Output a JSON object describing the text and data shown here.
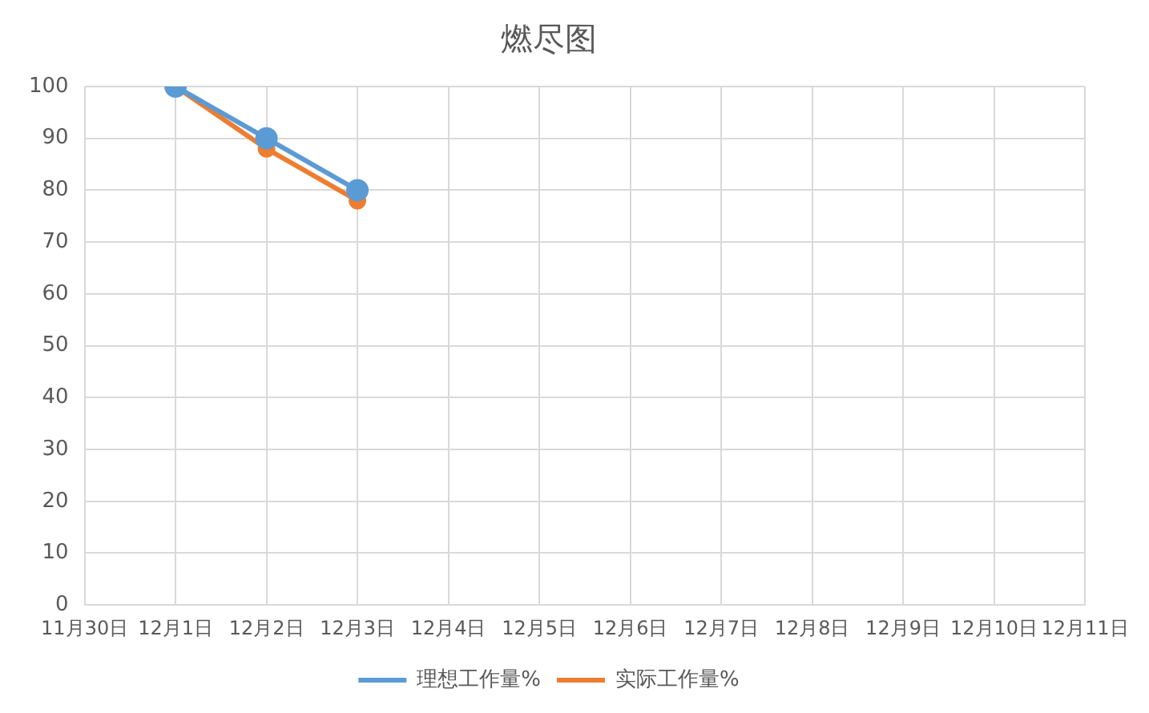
{
  "chart_data": {
    "type": "line",
    "title": "燃尽图",
    "categories": [
      "11月30日",
      "12月1日",
      "12月2日",
      "12月3日",
      "12月4日",
      "12月5日",
      "12月6日",
      "12月7日",
      "12月8日",
      "12月9日",
      "12月10日",
      "12月11日"
    ],
    "series": [
      {
        "name": "理想工作量%",
        "color": "#5b9bd5",
        "values": [
          null,
          100,
          90,
          80,
          null,
          null,
          null,
          null,
          null,
          null,
          null,
          null
        ]
      },
      {
        "name": "实际工作量%",
        "color": "#ed7d31",
        "values": [
          null,
          100,
          88,
          78,
          null,
          null,
          null,
          null,
          null,
          null,
          null,
          null
        ]
      }
    ],
    "ylim": [
      0,
      100
    ],
    "yticks": [
      0,
      10,
      20,
      30,
      40,
      50,
      60,
      70,
      80,
      90,
      100
    ],
    "grid": true,
    "legend": "bottom",
    "marker": "circle",
    "line_style": "solid"
  }
}
